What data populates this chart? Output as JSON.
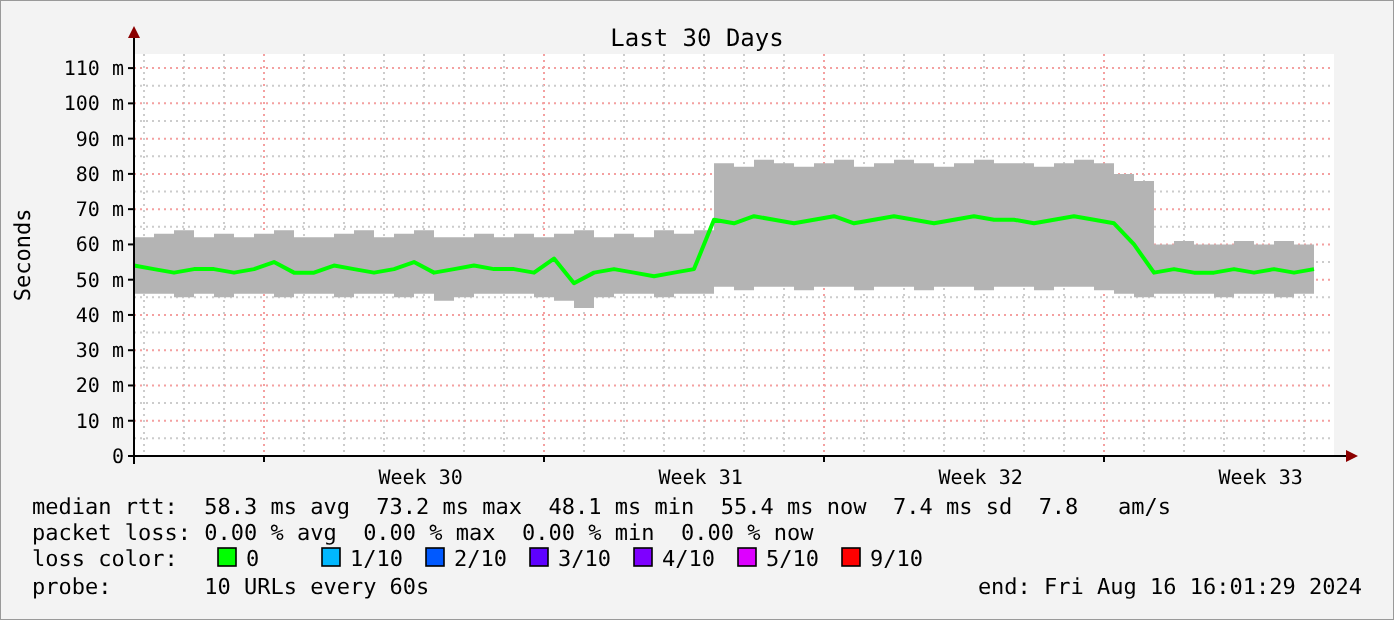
{
  "chart_data": {
    "type": "line",
    "title": "Last 30 Days",
    "ylabel": "Seconds",
    "x": [
      "2024-07-18T18:00",
      "2024-07-19T06:00",
      "2024-07-19T18:00",
      "2024-07-20T06:00",
      "2024-07-20T18:00",
      "2024-07-21T06:00",
      "2024-07-21T18:00",
      "2024-07-22T06:00",
      "2024-07-22T18:00",
      "2024-07-23T06:00",
      "2024-07-23T18:00",
      "2024-07-24T06:00",
      "2024-07-24T18:00",
      "2024-07-25T06:00",
      "2024-07-25T18:00",
      "2024-07-26T06:00",
      "2024-07-26T18:00",
      "2024-07-27T06:00",
      "2024-07-27T18:00",
      "2024-07-28T06:00",
      "2024-07-28T18:00",
      "2024-07-29T06:00",
      "2024-07-29T18:00",
      "2024-07-30T06:00",
      "2024-07-30T18:00",
      "2024-07-31T06:00",
      "2024-07-31T18:00",
      "2024-08-01T06:00",
      "2024-08-01T18:00",
      "2024-08-02T06:00",
      "2024-08-02T18:00",
      "2024-08-03T06:00",
      "2024-08-03T18:00",
      "2024-08-04T06:00",
      "2024-08-04T18:00",
      "2024-08-05T06:00",
      "2024-08-05T18:00",
      "2024-08-06T06:00",
      "2024-08-06T18:00",
      "2024-08-07T06:00",
      "2024-08-07T18:00",
      "2024-08-08T06:00",
      "2024-08-08T18:00",
      "2024-08-09T06:00",
      "2024-08-09T18:00",
      "2024-08-10T06:00",
      "2024-08-10T18:00",
      "2024-08-11T06:00",
      "2024-08-11T18:00",
      "2024-08-12T06:00",
      "2024-08-12T18:00",
      "2024-08-13T06:00",
      "2024-08-13T18:00",
      "2024-08-14T06:00",
      "2024-08-14T18:00",
      "2024-08-15T06:00",
      "2024-08-15T18:00",
      "2024-08-16T06:00",
      "2024-08-16T18:00",
      "2024-08-17T06:00"
    ],
    "series": [
      {
        "name": "0",
        "color": "#00ff00",
        "values": [
          54,
          53,
          52,
          53,
          53,
          52,
          53,
          55,
          52,
          52,
          54,
          53,
          52,
          53,
          55,
          52,
          53,
          54,
          53,
          53,
          52,
          56,
          49,
          52,
          53,
          52,
          51,
          52,
          53,
          67,
          66,
          68,
          67,
          66,
          67,
          68,
          66,
          67,
          68,
          67,
          66,
          67,
          68,
          67,
          67,
          66,
          67,
          68,
          67,
          66,
          60,
          52,
          53,
          52,
          52,
          53,
          52,
          53,
          52,
          53
        ],
        "lower": [
          46,
          46,
          45,
          46,
          45,
          46,
          46,
          45,
          46,
          46,
          45,
          46,
          46,
          45,
          46,
          44,
          45,
          46,
          46,
          46,
          45,
          44,
          42,
          45,
          46,
          46,
          45,
          46,
          46,
          48,
          47,
          48,
          48,
          47,
          48,
          48,
          47,
          48,
          48,
          47,
          48,
          48,
          47,
          48,
          48,
          47,
          48,
          48,
          47,
          46,
          45,
          46,
          46,
          46,
          45,
          46,
          46,
          45,
          46,
          46
        ],
        "upper": [
          62,
          63,
          64,
          62,
          63,
          62,
          63,
          64,
          62,
          62,
          63,
          64,
          62,
          63,
          64,
          62,
          62,
          63,
          62,
          63,
          62,
          63,
          64,
          62,
          63,
          62,
          64,
          63,
          64,
          83,
          82,
          84,
          83,
          82,
          83,
          84,
          82,
          83,
          84,
          83,
          82,
          83,
          84,
          83,
          83,
          82,
          83,
          84,
          83,
          80,
          78,
          60,
          61,
          60,
          60,
          61,
          60,
          61,
          60,
          61
        ]
      },
      {
        "name": "1/10",
        "color": "#00b8ff",
        "values": [
          null,
          null,
          null,
          null,
          null,
          null,
          null,
          null,
          null,
          null,
          null,
          null,
          null,
          null,
          null,
          null,
          null,
          null,
          null,
          null,
          null,
          null,
          null,
          null,
          null,
          null,
          null,
          null,
          null,
          null,
          null,
          null,
          null,
          null,
          null,
          null,
          null,
          null,
          null,
          null,
          null,
          null,
          null,
          null,
          null,
          null,
          null,
          null,
          null,
          null,
          null,
          null,
          null,
          null,
          null,
          null,
          null,
          null,
          null,
          null
        ]
      },
      {
        "name": "2/10",
        "color": "#0059ff",
        "values": [
          null,
          null,
          null,
          null,
          null,
          null,
          null,
          null,
          null,
          null,
          null,
          null,
          null,
          null,
          null,
          null,
          null,
          null,
          null,
          null,
          null,
          null,
          null,
          null,
          null,
          null,
          null,
          null,
          null,
          null,
          null,
          null,
          null,
          null,
          null,
          null,
          null,
          null,
          null,
          null,
          null,
          null,
          null,
          null,
          null,
          null,
          null,
          null,
          null,
          null,
          null,
          null,
          null,
          null,
          null,
          null,
          null,
          null,
          null,
          null
        ]
      },
      {
        "name": "3/10",
        "color": "#5e00ff",
        "values": [
          null,
          null,
          null,
          null,
          null,
          null,
          null,
          null,
          null,
          null,
          null,
          null,
          null,
          null,
          null,
          null,
          null,
          null,
          null,
          null,
          null,
          null,
          null,
          null,
          null,
          null,
          null,
          null,
          null,
          null,
          null,
          null,
          null,
          null,
          null,
          null,
          null,
          null,
          null,
          null,
          null,
          null,
          null,
          null,
          null,
          null,
          null,
          null,
          null,
          null,
          null,
          null,
          null,
          null,
          null,
          null,
          null,
          null,
          null,
          null
        ]
      },
      {
        "name": "4/10",
        "color": "#7e00ff",
        "values": [
          null,
          null,
          null,
          null,
          null,
          null,
          null,
          null,
          null,
          null,
          null,
          null,
          null,
          null,
          null,
          null,
          null,
          null,
          null,
          null,
          null,
          null,
          null,
          null,
          null,
          null,
          null,
          null,
          null,
          null,
          null,
          null,
          null,
          null,
          null,
          null,
          null,
          null,
          null,
          null,
          null,
          null,
          null,
          null,
          null,
          null,
          null,
          null,
          null,
          null,
          null,
          null,
          null,
          null,
          null,
          null,
          null,
          null,
          null,
          null
        ]
      },
      {
        "name": "5/10",
        "color": "#dd00ff",
        "values": [
          null,
          null,
          null,
          null,
          null,
          null,
          null,
          null,
          null,
          null,
          null,
          null,
          null,
          null,
          null,
          null,
          null,
          null,
          null,
          null,
          null,
          null,
          null,
          null,
          null,
          null,
          null,
          null,
          null,
          null,
          null,
          null,
          null,
          null,
          null,
          null,
          null,
          null,
          null,
          null,
          null,
          null,
          null,
          null,
          null,
          null,
          null,
          null,
          null,
          null,
          null,
          null,
          null,
          null,
          null,
          null,
          null,
          null,
          null,
          null
        ]
      },
      {
        "name": "9/10",
        "color": "#ff0000",
        "values": [
          null,
          null,
          null,
          null,
          null,
          null,
          null,
          null,
          null,
          null,
          null,
          null,
          null,
          null,
          null,
          null,
          null,
          null,
          null,
          null,
          null,
          null,
          null,
          null,
          null,
          null,
          null,
          null,
          null,
          null,
          null,
          null,
          null,
          null,
          null,
          null,
          null,
          null,
          null,
          null,
          null,
          null,
          null,
          null,
          null,
          null,
          null,
          null,
          null,
          null,
          null,
          null,
          null,
          null,
          null,
          null,
          null,
          null,
          null,
          null
        ]
      }
    ],
    "legend_title": "loss color:",
    "legend": "bottom",
    "xlim": [
      "2024-07-18T18:00",
      "2024-08-17T18:00"
    ],
    "xticks": [
      {
        "value": "2024-07-22T00:00",
        "label": null
      },
      {
        "value": "2024-07-25T22:00",
        "label": "Week 30"
      },
      {
        "value": "2024-07-29T00:00",
        "label": null
      },
      {
        "value": "2024-08-01T22:00",
        "label": "Week 31"
      },
      {
        "value": "2024-08-05T00:00",
        "label": null
      },
      {
        "value": "2024-08-08T22:00",
        "label": "Week 32"
      },
      {
        "value": "2024-08-12T00:00",
        "label": null
      },
      {
        "value": "2024-08-15T22:00",
        "label": "Week 33"
      }
    ],
    "ylim": [
      0,
      114
    ],
    "yticks": [
      0,
      {
        "value": 10,
        "label": "10 m"
      },
      {
        "value": 20,
        "label": "20 m"
      },
      {
        "value": 30,
        "label": "30 m"
      },
      {
        "value": 40,
        "label": "40 m"
      },
      {
        "value": 50,
        "label": "50 m"
      },
      {
        "value": 60,
        "label": "60 m"
      },
      {
        "value": 70,
        "label": "70 m"
      },
      {
        "value": 80,
        "label": "80 m"
      },
      {
        "value": 90,
        "label": "90 m"
      },
      {
        "value": 100,
        "label": "100 m"
      },
      {
        "value": 110,
        "label": "110 m"
      }
    ],
    "grid": true,
    "annotations": [
      "median rtt:  58.3 ms avg  73.2 ms max  48.1 ms min  55.4 ms now  7.4 ms sd  7.8   am/s",
      "packet loss: 0.00 % avg  0.00 % max  0.00 % min  0.00 % now",
      "probe:       10 URLs every 60s",
      "end: Fri Aug 16 16:01:29 2024"
    ]
  }
}
